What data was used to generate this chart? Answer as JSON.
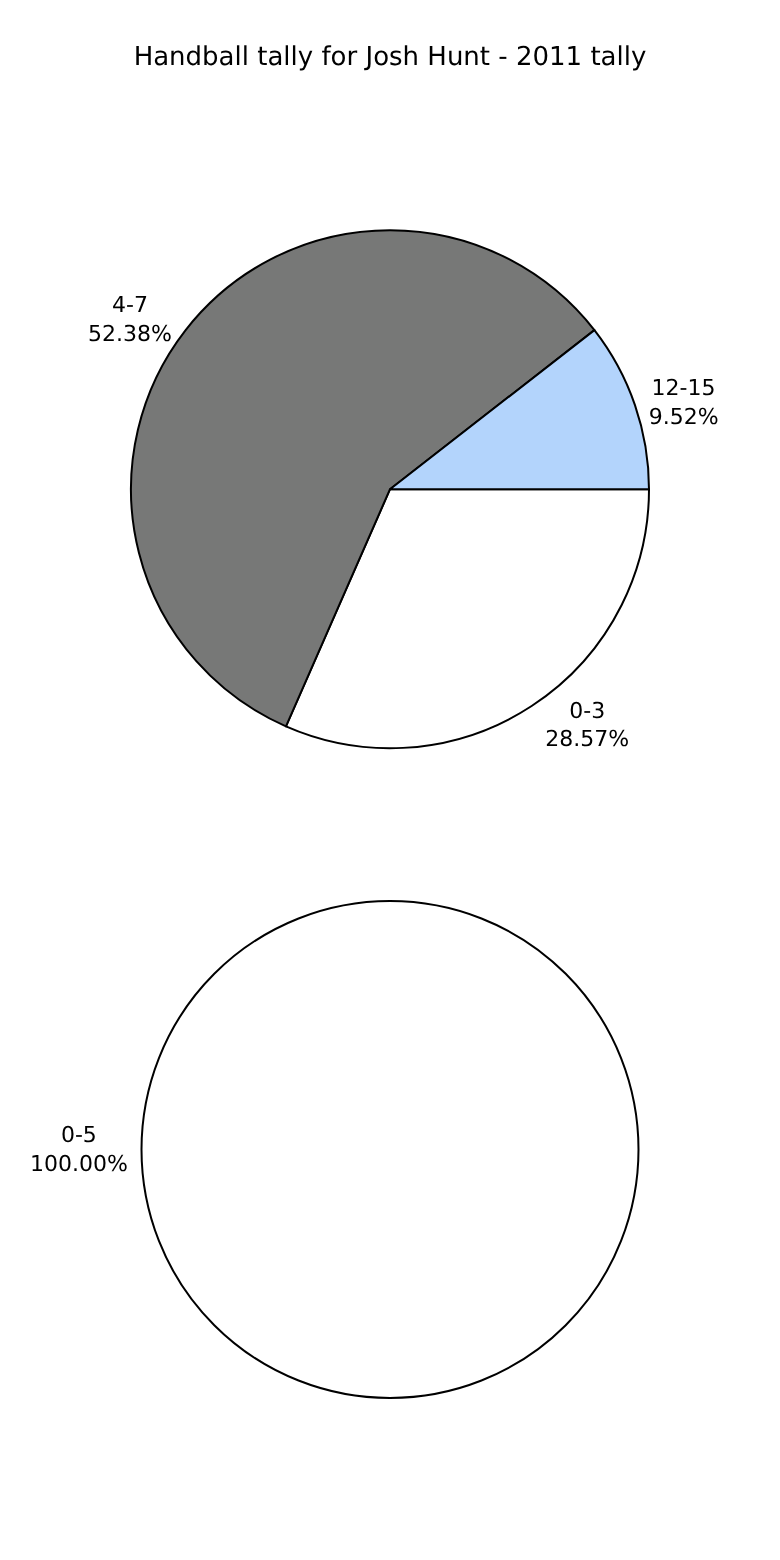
{
  "chart_data": [
    {
      "type": "pie",
      "title": "Handball tally for Josh Hunt - 2011 tally",
      "categories": [
        "0-3",
        "4-7",
        "12-15"
      ],
      "values": [
        28.57,
        52.38,
        9.52
      ],
      "colors": [
        "#ffffff",
        "#777877",
        "#b3d4fc"
      ],
      "value_labels": [
        "28.57%",
        "52.38%",
        "9.52%"
      ]
    },
    {
      "type": "pie",
      "categories": [
        "0-5"
      ],
      "values": [
        100
      ],
      "colors": [
        "#ffffff"
      ],
      "value_labels": [
        "100.00%"
      ]
    }
  ]
}
